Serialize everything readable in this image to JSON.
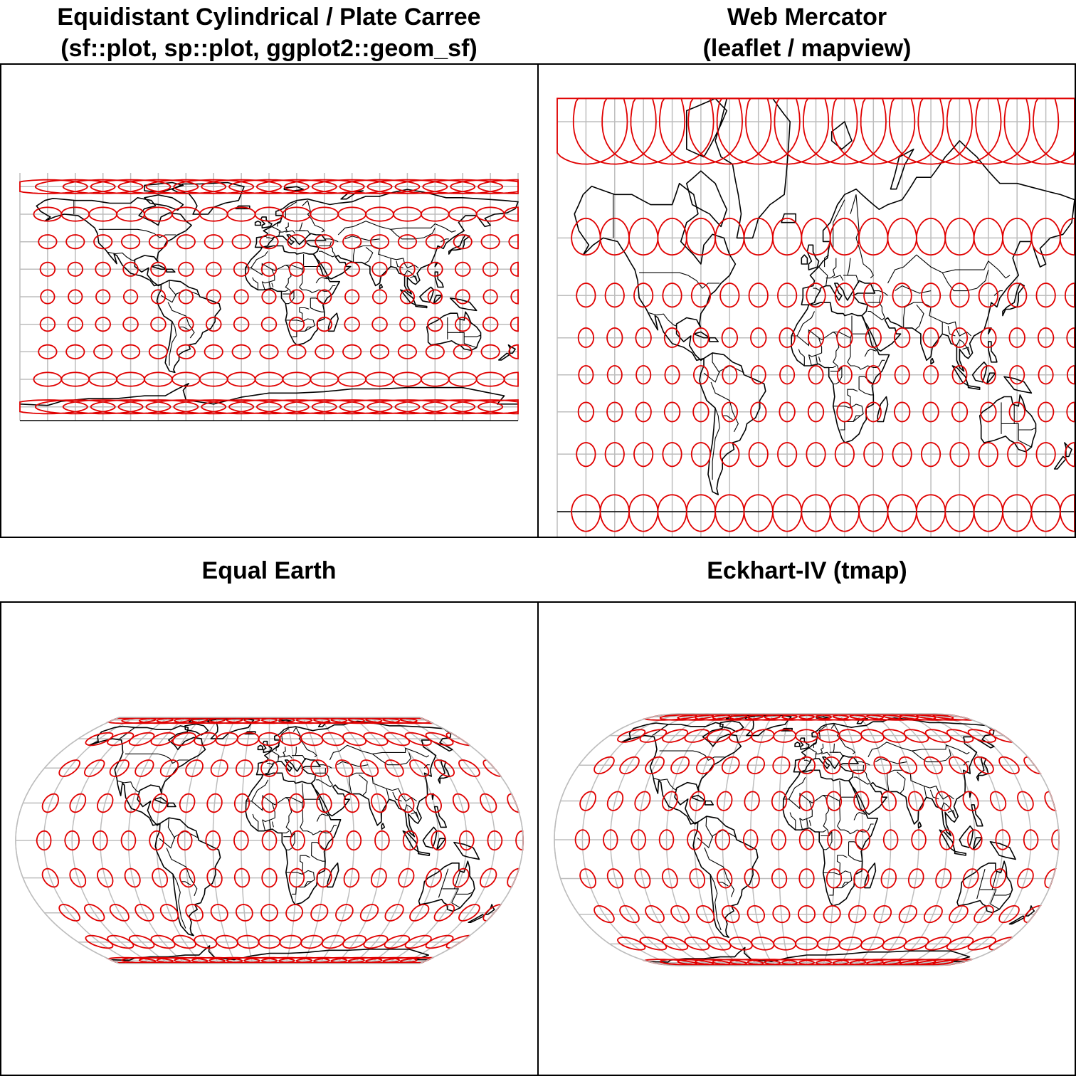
{
  "panels": [
    {
      "id": "plate-carree",
      "title_line1": "Equidistant Cylindrical / Plate Carree",
      "title_line2": "(sf::plot, sp::plot, ggplot2::geom_sf)"
    },
    {
      "id": "web-mercator",
      "title_line1": "Web Mercator",
      "title_line2": "(leaflet / mapview)"
    },
    {
      "id": "equal-earth",
      "title_line1": "Equal Earth",
      "title_line2": ""
    },
    {
      "id": "eckhart-iv",
      "title_line1": "Eckhart-IV (tmap)",
      "title_line2": ""
    }
  ],
  "colors": {
    "graticule": "#bdbdbd",
    "tissot": "#e00000",
    "coastline": "#000000",
    "frame": "#000000"
  },
  "graticule": {
    "meridian_step_deg": 20,
    "parallel_step_deg": 20
  },
  "tissot": {
    "lon_step_deg": 20,
    "lat_values_deg": [
      -80,
      -60,
      -40,
      -20,
      0,
      20,
      40,
      60,
      80
    ]
  }
}
